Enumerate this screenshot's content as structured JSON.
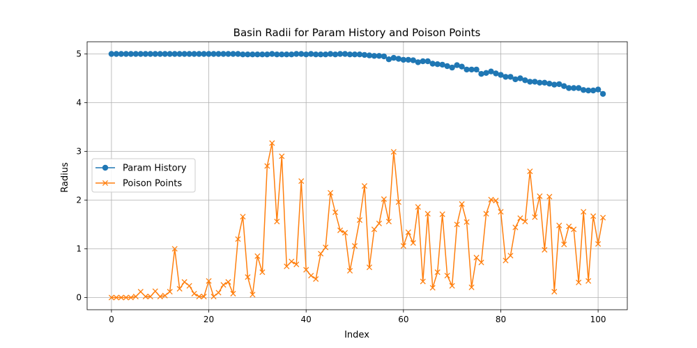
{
  "chart_data": {
    "type": "line",
    "title": "Basin Radii for Param History and Poison Points",
    "xlabel": "Index",
    "ylabel": "Radius",
    "xlim": [
      -5,
      106
    ],
    "ylim": [
      -0.25,
      5.25
    ],
    "xticks": [
      0,
      20,
      40,
      60,
      80,
      100
    ],
    "yticks": [
      0,
      1,
      2,
      3,
      4,
      5
    ],
    "grid": true,
    "legend_position": "center-left",
    "series": [
      {
        "name": "Param History",
        "color": "#1f77b4",
        "marker": "circle",
        "values": [
          5.0,
          5.0,
          5.0,
          5.0,
          5.0,
          5.0,
          5.0,
          5.0,
          5.0,
          5.0,
          5.0,
          5.0,
          5.0,
          5.0,
          5.0,
          5.0,
          5.0,
          5.0,
          5.0,
          5.0,
          5.0,
          5.0,
          5.0,
          5.0,
          5.0,
          5.0,
          5.0,
          4.99,
          4.99,
          4.99,
          4.99,
          4.99,
          4.99,
          5.0,
          4.99,
          4.99,
          4.99,
          4.99,
          5.0,
          5.0,
          4.99,
          5.0,
          4.99,
          4.99,
          4.99,
          5.0,
          4.99,
          5.0,
          5.0,
          4.99,
          4.99,
          4.99,
          4.98,
          4.97,
          4.96,
          4.96,
          4.95,
          4.89,
          4.92,
          4.9,
          4.88,
          4.88,
          4.87,
          4.83,
          4.85,
          4.85,
          4.8,
          4.79,
          4.78,
          4.75,
          4.72,
          4.77,
          4.74,
          4.68,
          4.68,
          4.68,
          4.59,
          4.61,
          4.64,
          4.6,
          4.57,
          4.53,
          4.53,
          4.48,
          4.5,
          4.46,
          4.43,
          4.43,
          4.41,
          4.41,
          4.39,
          4.37,
          4.38,
          4.34,
          4.3,
          4.3,
          4.3,
          4.26,
          4.25,
          4.25,
          4.27,
          4.18
        ]
      },
      {
        "name": "Poison Points",
        "color": "#ff7f0e",
        "marker": "x",
        "values": [
          0.0,
          0.0,
          0.0,
          0.0,
          0.0,
          0.02,
          0.12,
          0.02,
          0.02,
          0.13,
          0.02,
          0.04,
          0.12,
          1.0,
          0.18,
          0.32,
          0.24,
          0.08,
          0.02,
          0.02,
          0.34,
          0.02,
          0.1,
          0.26,
          0.32,
          0.08,
          1.2,
          1.66,
          0.42,
          0.06,
          0.85,
          0.52,
          2.7,
          3.17,
          1.56,
          2.9,
          0.64,
          0.74,
          0.68,
          2.39,
          0.57,
          0.45,
          0.38,
          0.9,
          1.03,
          2.15,
          1.75,
          1.38,
          1.33,
          0.55,
          1.06,
          1.59,
          2.29,
          0.62,
          1.4,
          1.52,
          2.02,
          1.56,
          2.99,
          1.96,
          1.06,
          1.34,
          1.12,
          1.86,
          0.33,
          1.72,
          0.2,
          0.52,
          1.71,
          0.45,
          0.24,
          1.5,
          1.92,
          1.55,
          0.21,
          0.82,
          0.72,
          1.72,
          2.01,
          1.99,
          1.76,
          0.76,
          0.86,
          1.44,
          1.63,
          1.56,
          2.59,
          1.65,
          2.08,
          0.98,
          2.07,
          0.12,
          1.48,
          1.09,
          1.46,
          1.4,
          0.31,
          1.76,
          0.34,
          1.67,
          1.1,
          1.64
        ]
      }
    ]
  }
}
